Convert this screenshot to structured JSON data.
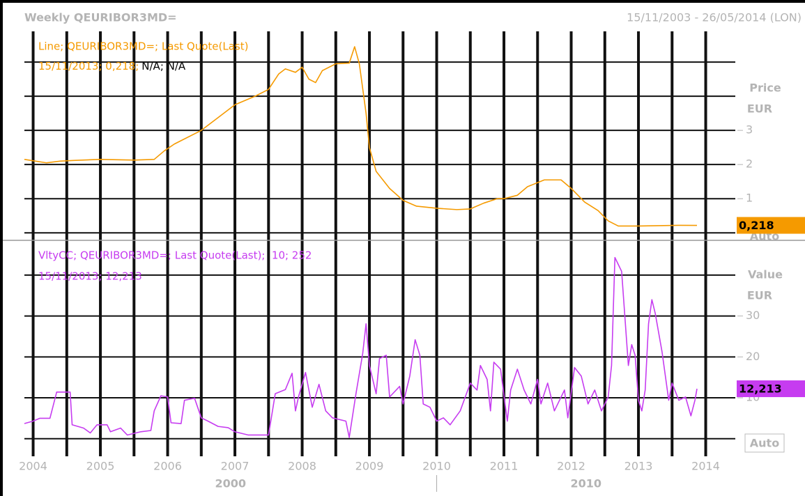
{
  "header": {
    "title": "Weekly QEURIBOR3MD=",
    "range": "15/11/2003 - 26/05/2014 (LON)"
  },
  "chart_data": [
    {
      "type": "line",
      "status_text": "15/11/2013; 0,218;",
      "status_na": "N/A; N/A",
      "axis_label": "Price",
      "axis_unit": "EUR",
      "scale_mode": "Auto",
      "ylim": [
        -0.22,
        5.9
      ],
      "yticks": [
        1,
        2,
        3
      ],
      "ygrid": [
        0,
        1,
        2,
        3,
        4,
        5
      ],
      "last_label": "0,218",
      "series": [
        {
          "name": "Line; QEURIBOR3MD=; Last Quote(Last)",
          "color": "#f59a00",
          "x": [
            2003.87,
            2004.2,
            2004.4,
            2004.6,
            2005,
            2005.5,
            2005.8,
            2005.95,
            2006.1,
            2006.5,
            2006.8,
            2007,
            2007.3,
            2007.5,
            2007.65,
            2007.75,
            2007.9,
            2008,
            2008.1,
            2008.2,
            2008.3,
            2008.5,
            2008.7,
            2008.78,
            2008.85,
            2008.95,
            2009,
            2009.1,
            2009.3,
            2009.5,
            2009.7,
            2010,
            2010.3,
            2010.5,
            2010.7,
            2010.9,
            2011,
            2011.2,
            2011.35,
            2011.6,
            2011.85,
            2012,
            2012.2,
            2012.4,
            2012.55,
            2012.7,
            2013,
            2013.3,
            2013.6,
            2013.87
          ],
          "values": [
            2.15,
            2.05,
            2.1,
            2.12,
            2.15,
            2.13,
            2.15,
            2.4,
            2.6,
            3.0,
            3.45,
            3.75,
            4.0,
            4.2,
            4.65,
            4.8,
            4.7,
            4.85,
            4.5,
            4.4,
            4.75,
            4.95,
            4.97,
            5.45,
            4.95,
            3.5,
            2.5,
            1.8,
            1.3,
            0.95,
            0.78,
            0.72,
            0.68,
            0.7,
            0.87,
            1.0,
            1.0,
            1.1,
            1.35,
            1.55,
            1.55,
            1.3,
            0.9,
            0.65,
            0.35,
            0.2,
            0.2,
            0.21,
            0.22,
            0.218
          ]
        }
      ]
    },
    {
      "type": "line",
      "status_text": "15/11/2013; 12,213",
      "axis_label": "Value",
      "axis_unit": "EUR",
      "scale_mode": "Auto",
      "ylim": [
        -4.3,
        48.5
      ],
      "yticks": [
        10,
        20,
        30
      ],
      "ygrid": [
        0,
        10,
        20,
        30,
        40
      ],
      "last_label": "12,213",
      "xlim": [
        2003.87,
        2014.44
      ],
      "xticks": [
        2004,
        2005,
        2006,
        2007,
        2008,
        2009,
        2010,
        2011,
        2012,
        2013,
        2014
      ],
      "xminor": [
        2004.5,
        2005.5,
        2006.5,
        2007.5,
        2008.5,
        2009.5,
        2010.5,
        2011.5,
        2012.5,
        2013.5
      ],
      "xticks_major": [
        2000,
        2010
      ],
      "series": [
        {
          "name": "VltyCC; QEURIBOR3MD=; Last Quote(Last);  10; 252",
          "color": "#c63cf0",
          "x": [
            2003.87,
            2004,
            2004.1,
            2004.25,
            2004.35,
            2004.55,
            2004.58,
            2004.75,
            2004.85,
            2004.95,
            2005.1,
            2005.15,
            2005.3,
            2005.4,
            2005.6,
            2005.75,
            2005.8,
            2005.9,
            2006,
            2006.05,
            2006.2,
            2006.25,
            2006.4,
            2006.5,
            2006.6,
            2006.75,
            2006.9,
            2007,
            2007.2,
            2007.5,
            2007.6,
            2007.75,
            2007.85,
            2007.9,
            2007.95,
            2008.05,
            2008.1,
            2008.15,
            2008.25,
            2008.35,
            2008.45,
            2008.65,
            2008.7,
            2008.8,
            2008.9,
            2008.95,
            2009,
            2009.1,
            2009.15,
            2009.25,
            2009.3,
            2009.45,
            2009.5,
            2009.6,
            2009.68,
            2009.75,
            2009.8,
            2009.9,
            2010,
            2010.1,
            2010.2,
            2010.35,
            2010.5,
            2010.6,
            2010.65,
            2010.75,
            2010.8,
            2010.85,
            2010.95,
            2011.05,
            2011.1,
            2011.2,
            2011.3,
            2011.4,
            2011.5,
            2011.55,
            2011.65,
            2011.75,
            2011.9,
            2011.95,
            2012.05,
            2012.15,
            2012.25,
            2012.35,
            2012.45,
            2012.55,
            2012.6,
            2012.65,
            2012.75,
            2012.85,
            2012.9,
            2012.95,
            2013,
            2013.05,
            2013.1,
            2013.15,
            2013.2,
            2013.25,
            2013.35,
            2013.45,
            2013.5,
            2013.6,
            2013.7,
            2013.78,
            2013.84,
            2013.87
          ],
          "values": [
            3.7,
            4.3,
            5,
            5,
            11.4,
            11.4,
            3.4,
            2.6,
            1.4,
            3.4,
            3.4,
            1.7,
            2.6,
            0.9,
            1.7,
            2,
            6.8,
            10.5,
            10.2,
            3.9,
            3.7,
            9.4,
            9.9,
            5.1,
            4.3,
            3,
            2.7,
            1.7,
            0.9,
            0.9,
            11,
            12,
            16,
            6.8,
            10.5,
            16.2,
            11.9,
            7.7,
            13.3,
            6.8,
            5.1,
            4.3,
            0.3,
            11,
            20.8,
            28.1,
            17.9,
            11,
            19.6,
            20.4,
            10.2,
            12.8,
            8.5,
            15.3,
            24.2,
            20.4,
            8.5,
            7.7,
            4.3,
            5.1,
            3.4,
            6.8,
            13.6,
            11.9,
            17.9,
            14.5,
            6.8,
            18.7,
            17,
            4.3,
            11.9,
            17,
            11.9,
            8.5,
            14.5,
            8.5,
            13.6,
            6.8,
            11.9,
            5.1,
            17.4,
            15.3,
            8.5,
            11.9,
            6.8,
            10.2,
            17.9,
            44.3,
            40.9,
            17.9,
            23,
            20.4,
            9.4,
            6.8,
            11.9,
            28.1,
            34,
            30.6,
            21.3,
            9.4,
            13.6,
            9.4,
            10.2,
            5.6,
            9.4,
            12.213
          ]
        }
      ]
    }
  ]
}
